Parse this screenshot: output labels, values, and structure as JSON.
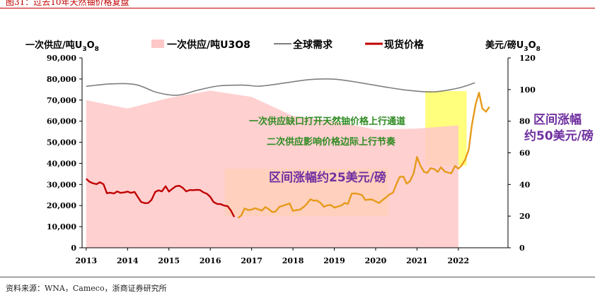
{
  "figure": {
    "title": "图31：过去10年天然铀价格复盘",
    "source": "资料来源：WNA，Cameco，浙商证券研究所"
  },
  "chart_data": {
    "type": "area+line",
    "x_axis": {
      "ticks": [
        "2013",
        "2014",
        "2015",
        "2016",
        "2017",
        "2018",
        "2019",
        "2020",
        "2021",
        "2022"
      ],
      "range": [
        2012.9,
        2023.2
      ]
    },
    "y_left": {
      "label": "一次供应/吨U",
      "label_sub": "3",
      "label_tail": "O",
      "label_sub2": "8",
      "range": [
        0,
        90000
      ],
      "ticks": [
        "0",
        "10,000",
        "20,000",
        "30,000",
        "40,000",
        "50,000",
        "60,000",
        "70,000",
        "80,000",
        "90,000"
      ]
    },
    "y_right": {
      "label": "美元/磅U",
      "label_sub": "3",
      "label_tail": "O",
      "label_sub2": "8",
      "range": [
        0,
        120
      ],
      "ticks": [
        "0",
        "20",
        "40",
        "60",
        "80",
        "100",
        "120"
      ]
    },
    "legend": [
      {
        "name": "一次供应/吨U3O8",
        "type": "area",
        "color": "#ffc8c8"
      },
      {
        "name": "全球需求",
        "type": "line",
        "color": "#7f7f7f"
      },
      {
        "name": "现货价格",
        "type": "line",
        "color": "#c00000"
      }
    ],
    "series": [
      {
        "name": "一次供应/吨U3O8",
        "axis": "left",
        "points": [
          [
            2013,
            70000
          ],
          [
            2014,
            66000
          ],
          [
            2015,
            71000
          ],
          [
            2016,
            74500
          ],
          [
            2017,
            71500
          ],
          [
            2018,
            62500
          ],
          [
            2019,
            60000
          ],
          [
            2020,
            56000
          ],
          [
            2021,
            56500
          ],
          [
            2022,
            58000
          ]
        ]
      },
      {
        "name": "全球需求",
        "axis": "left",
        "points": [
          [
            2013,
            76500
          ],
          [
            2013.6,
            77700
          ],
          [
            2014.2,
            77300
          ],
          [
            2014.7,
            73700
          ],
          [
            2015.2,
            72300
          ],
          [
            2015.7,
            74700
          ],
          [
            2016.2,
            76700
          ],
          [
            2016.8,
            77100
          ],
          [
            2017.2,
            76600
          ],
          [
            2017.8,
            78100
          ],
          [
            2018.4,
            79700
          ],
          [
            2019.0,
            79900
          ],
          [
            2019.6,
            78300
          ],
          [
            2020.2,
            76300
          ],
          [
            2020.8,
            74600
          ],
          [
            2021.4,
            73900
          ],
          [
            2022.0,
            75700
          ],
          [
            2022.4,
            78200
          ]
        ]
      },
      {
        "name": "现货价格",
        "axis": "right",
        "points": [
          [
            2013.0,
            43.6
          ],
          [
            2013.08,
            41.7
          ],
          [
            2013.17,
            40.7
          ],
          [
            2013.25,
            40.2
          ],
          [
            2013.33,
            41.4
          ],
          [
            2013.42,
            40.1
          ],
          [
            2013.5,
            34.5
          ],
          [
            2013.58,
            34.8
          ],
          [
            2013.67,
            34.3
          ],
          [
            2013.75,
            35.6
          ],
          [
            2013.83,
            34.7
          ],
          [
            2013.92,
            35.0
          ],
          [
            2014.0,
            35.5
          ],
          [
            2014.08,
            34.7
          ],
          [
            2014.17,
            35.3
          ],
          [
            2014.25,
            32.0
          ],
          [
            2014.33,
            28.9
          ],
          [
            2014.42,
            28.2
          ],
          [
            2014.5,
            28.3
          ],
          [
            2014.58,
            30.3
          ],
          [
            2014.67,
            35.3
          ],
          [
            2014.75,
            36.3
          ],
          [
            2014.83,
            35.6
          ],
          [
            2014.92,
            38.9
          ],
          [
            2015.0,
            35.5
          ],
          [
            2015.08,
            37.2
          ],
          [
            2015.17,
            38.9
          ],
          [
            2015.25,
            39.2
          ],
          [
            2015.33,
            38.0
          ],
          [
            2015.42,
            35.6
          ],
          [
            2015.5,
            36.5
          ],
          [
            2015.58,
            36.4
          ],
          [
            2015.67,
            36.6
          ],
          [
            2015.75,
            36.5
          ],
          [
            2015.83,
            35.1
          ],
          [
            2015.92,
            34.1
          ],
          [
            2016.0,
            32.2
          ],
          [
            2016.08,
            28.9
          ],
          [
            2016.17,
            27.7
          ],
          [
            2016.25,
            27.6
          ],
          [
            2016.33,
            26.7
          ],
          [
            2016.42,
            26.3
          ],
          [
            2016.5,
            23.5
          ],
          [
            2016.58,
            19.5
          ],
          [
            2016.67,
            18.8
          ],
          [
            2016.75,
            20.4
          ],
          [
            2016.83,
            24.8
          ],
          [
            2016.92,
            23.8
          ],
          [
            2017.0,
            24.1
          ],
          [
            2017.08,
            25.0
          ],
          [
            2017.17,
            24.2
          ],
          [
            2017.25,
            23.5
          ],
          [
            2017.33,
            25.7
          ],
          [
            2017.42,
            24.3
          ],
          [
            2017.5,
            22.6
          ],
          [
            2017.58,
            22.9
          ],
          [
            2017.67,
            25.8
          ],
          [
            2017.75,
            26.5
          ],
          [
            2017.83,
            27.2
          ],
          [
            2017.92,
            28.0
          ],
          [
            2018.0,
            23.3
          ],
          [
            2018.08,
            23.8
          ],
          [
            2018.17,
            24.1
          ],
          [
            2018.25,
            25.6
          ],
          [
            2018.33,
            27.5
          ],
          [
            2018.42,
            30.6
          ],
          [
            2018.5,
            29.8
          ],
          [
            2018.58,
            29.9
          ],
          [
            2018.67,
            28.3
          ],
          [
            2018.75,
            25.9
          ],
          [
            2018.83,
            26.8
          ],
          [
            2018.92,
            27.0
          ],
          [
            2019.0,
            25.4
          ],
          [
            2019.08,
            26.0
          ],
          [
            2019.17,
            26.7
          ],
          [
            2019.25,
            28.3
          ],
          [
            2019.33,
            27.7
          ],
          [
            2019.42,
            34.2
          ],
          [
            2019.5,
            34.4
          ],
          [
            2019.58,
            34.0
          ],
          [
            2019.67,
            33.3
          ],
          [
            2019.75,
            30.2
          ],
          [
            2019.83,
            30.5
          ],
          [
            2019.92,
            30.4
          ],
          [
            2020.0,
            29.3
          ],
          [
            2020.08,
            28.3
          ],
          [
            2020.17,
            30.2
          ],
          [
            2020.25,
            31.8
          ],
          [
            2020.33,
            33.7
          ],
          [
            2020.42,
            34.8
          ],
          [
            2020.5,
            40.1
          ],
          [
            2020.58,
            44.8
          ],
          [
            2020.67,
            45.0
          ],
          [
            2020.75,
            40.5
          ],
          [
            2020.83,
            42.1
          ],
          [
            2020.92,
            47.1
          ],
          [
            2021.0,
            57.4
          ],
          [
            2021.08,
            52.0
          ],
          [
            2021.17,
            48.0
          ],
          [
            2021.25,
            47.3
          ],
          [
            2021.33,
            50.3
          ],
          [
            2021.42,
            49.7
          ],
          [
            2021.5,
            47.9
          ],
          [
            2021.58,
            50.9
          ],
          [
            2021.67,
            48.2
          ],
          [
            2021.75,
            47.5
          ],
          [
            2021.83,
            47.1
          ],
          [
            2021.92,
            51.7
          ],
          [
            2022.0,
            50.0
          ],
          [
            2022.08,
            52.0
          ],
          [
            2022.17,
            56.0
          ],
          [
            2022.25,
            62.0
          ],
          [
            2022.33,
            78.0
          ],
          [
            2022.42,
            91.0
          ],
          [
            2022.5,
            98.0
          ],
          [
            2022.58,
            88.0
          ],
          [
            2022.67,
            86.0
          ],
          [
            2022.75,
            89.0
          ]
        ]
      }
    ],
    "highlights": [
      {
        "name": "区间涨幅约25美元/磅",
        "x": [
          2016.35,
          2020.3
        ],
        "y_right": [
          20,
          50
        ],
        "color": "#ffff66"
      },
      {
        "name": "区间涨幅约50美元/磅",
        "x": [
          2021.2,
          2022.2
        ],
        "y_right": [
          52,
          99
        ],
        "color": "#ffff66"
      }
    ],
    "annotations": [
      {
        "text": "一次供应缺口打开天然铀价格上行通道",
        "color": "#2e8b22"
      },
      {
        "text": "二次供应影响价格边际上行节奏",
        "color": "#2e8b22"
      },
      {
        "text": "区间涨幅约25美元/磅",
        "color": "#7030a0"
      },
      {
        "text": "区间涨幅",
        "color": "#7030a0"
      },
      {
        "text": "约50美元/磅",
        "color": "#7030a0"
      }
    ]
  }
}
